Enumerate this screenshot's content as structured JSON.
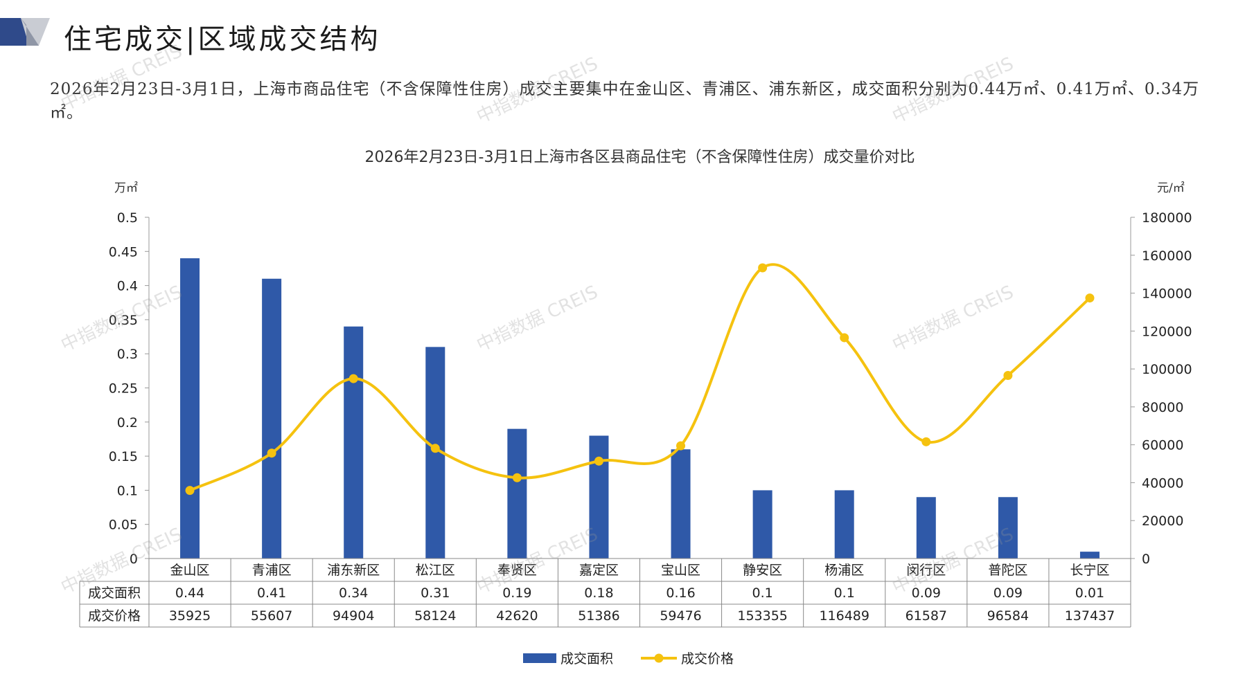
{
  "header": {
    "title": "住宅成交|区域成交结构"
  },
  "summary": "2026年2月23日-3月1日，上海市商品住宅（不含保障性住房）成交主要集中在金山区、青浦区、浦东新区，成交面积分别为0.44万㎡、0.41万㎡、0.34万㎡。",
  "watermark": "中指数据 CREIS",
  "colors": {
    "bar": "#2f59a8",
    "line": "#f5c20f",
    "axis": "#999999",
    "logo_dark": "#2f4a8a",
    "logo_light": "#c9ccd3"
  },
  "chart_data": {
    "type": "bar",
    "title": "2026年2月23日-3月1日上海市各区县商品住宅（不含保障性住房）成交量价对比",
    "categories": [
      "金山区",
      "青浦区",
      "浦东新区",
      "松江区",
      "奉贤区",
      "嘉定区",
      "宝山区",
      "静安区",
      "杨浦区",
      "闵行区",
      "普陀区",
      "长宁区"
    ],
    "y_left": {
      "unit": "万㎡",
      "ticks": [
        "0",
        "0.05",
        "0.1",
        "0.15",
        "0.2",
        "0.25",
        "0.3",
        "0.35",
        "0.4",
        "0.45",
        "0.5"
      ],
      "range": [
        0,
        0.5
      ]
    },
    "y_right": {
      "unit": "元/㎡",
      "ticks": [
        "0",
        "20000",
        "40000",
        "60000",
        "80000",
        "100000",
        "120000",
        "140000",
        "160000",
        "180000"
      ],
      "range": [
        0,
        180000
      ]
    },
    "series": [
      {
        "name": "成交面积",
        "type": "bar",
        "axis": "left",
        "values": [
          0.44,
          0.41,
          0.34,
          0.31,
          0.19,
          0.18,
          0.16,
          0.1,
          0.1,
          0.09,
          0.09,
          0.01
        ],
        "labels": [
          "0.44",
          "0.41",
          "0.34",
          "0.31",
          "0.19",
          "0.18",
          "0.16",
          "0.1",
          "0.1",
          "0.09",
          "0.09",
          "0.01"
        ]
      },
      {
        "name": "成交价格",
        "type": "line",
        "axis": "right",
        "values": [
          35925,
          55607,
          94904,
          58124,
          42620,
          51386,
          59476,
          153355,
          116489,
          61587,
          96584,
          137437
        ],
        "labels": [
          "35925",
          "55607",
          "94904",
          "58124",
          "42620",
          "51386",
          "59476",
          "153355",
          "116489",
          "61587",
          "96584",
          "137437"
        ]
      }
    ],
    "legend_position": "bottom",
    "grid": false
  }
}
